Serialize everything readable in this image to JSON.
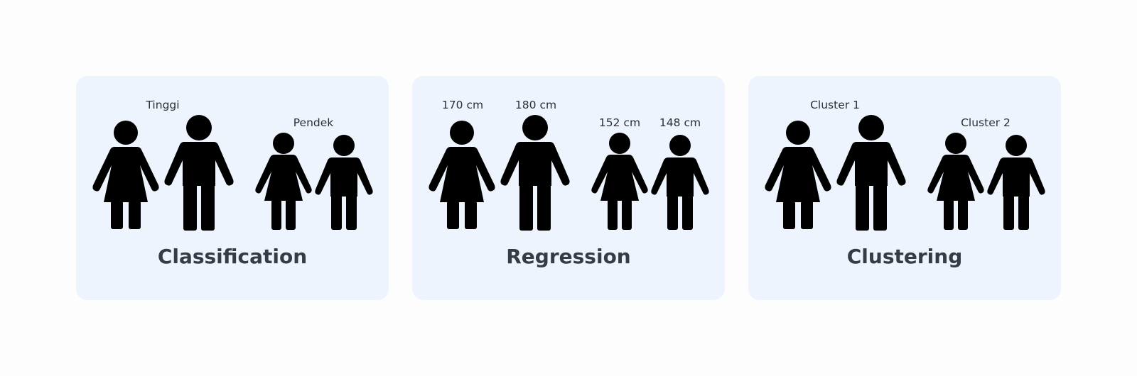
{
  "accent_color": "#3d84f5",
  "panel_background": "#edf4fd",
  "panels": [
    {
      "title": "Classification",
      "labels": [
        "Tinggi",
        "Pendek"
      ],
      "figures": [
        "female-icon",
        "male-icon",
        "girl-icon",
        "boy-icon"
      ]
    },
    {
      "title": "Regression",
      "labels": [
        "170 cm",
        "180 cm",
        "152 cm",
        "148 cm"
      ],
      "figures": [
        "female-icon",
        "male-icon",
        "girl-icon",
        "boy-icon"
      ]
    },
    {
      "title": "Clustering",
      "labels": [
        "Cluster 1",
        "Cluster 2"
      ],
      "figures": [
        "female-icon",
        "male-icon",
        "girl-icon",
        "boy-icon"
      ]
    }
  ]
}
